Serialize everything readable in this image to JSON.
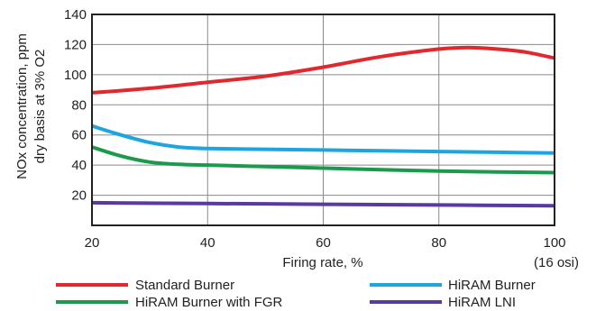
{
  "chart_data": {
    "type": "line",
    "xlabel": "Firing rate, %",
    "x_extra_label": "(16 osi)",
    "ylabel_lines": [
      "NOx concentration, ppm",
      "dry basis at 3% O2"
    ],
    "xlim": [
      20,
      100
    ],
    "ylim": [
      0,
      140
    ],
    "xticks": [
      20,
      40,
      60,
      80,
      100
    ],
    "yticks": [
      20,
      40,
      60,
      80,
      100,
      120,
      140
    ],
    "grid": true,
    "legend_position": "bottom",
    "series": [
      {
        "name": "Standard Burner",
        "color": "#e0282e",
        "x": [
          20,
          30,
          40,
          50,
          60,
          70,
          80,
          85,
          90,
          95,
          100
        ],
        "y": [
          88,
          91,
          95,
          99,
          105,
          112,
          117,
          118,
          117,
          115,
          111
        ]
      },
      {
        "name": "HiRAM Burner",
        "color": "#1ea5df",
        "x": [
          20,
          25,
          30,
          35,
          40,
          50,
          60,
          70,
          80,
          90,
          100
        ],
        "y": [
          66,
          60,
          55,
          52,
          51,
          50.5,
          50,
          49.5,
          49,
          48.5,
          48
        ]
      },
      {
        "name": "HiRAM Burner with FGR",
        "color": "#1a9a4a",
        "x": [
          20,
          25,
          30,
          35,
          40,
          50,
          60,
          70,
          80,
          90,
          100
        ],
        "y": [
          52,
          46,
          42,
          40.5,
          40,
          39,
          38,
          37,
          36,
          35.5,
          35
        ]
      },
      {
        "name": "HiRAM LNI",
        "color": "#5b3aa0",
        "x": [
          20,
          40,
          60,
          80,
          100
        ],
        "y": [
          15,
          14.5,
          14,
          13.5,
          13
        ]
      }
    ]
  }
}
